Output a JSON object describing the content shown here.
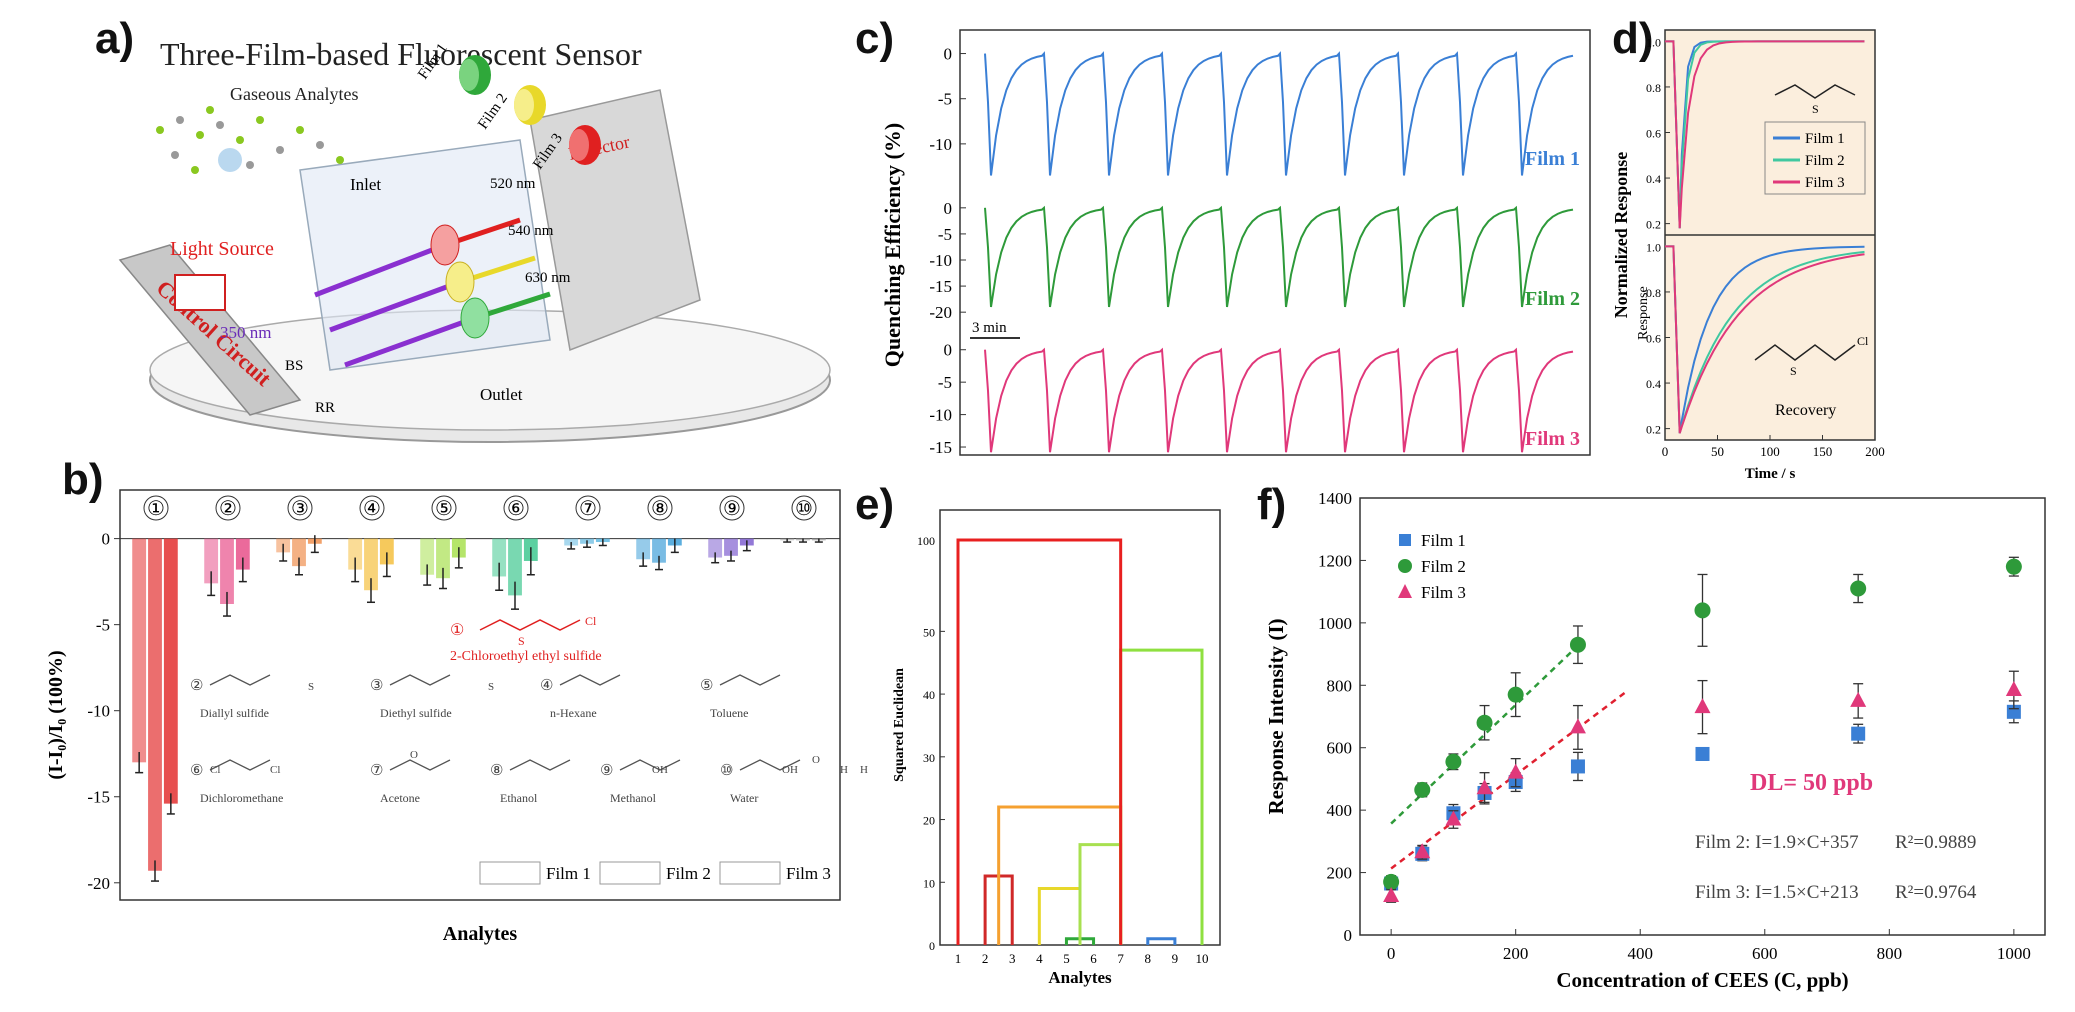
{
  "panel_labels": {
    "a": "a)",
    "b": "b)",
    "c": "c)",
    "d": "d)",
    "e": "e)",
    "f": "f)"
  },
  "colors": {
    "film1": "#3a7fd5",
    "film2": "#2e9a3a",
    "film3": "#e0387a",
    "red": "#e02020",
    "yellow": "#e8d82a",
    "green": "#2fa83a",
    "purple": "#6a3cc8"
  },
  "panel_a": {
    "title": "Three-Film-based Fluorescent Sensor",
    "gaseous": "Gaseous Analytes",
    "film1": "Film 1",
    "film2": "Film 2",
    "film3": "Film 3",
    "detector": "Detector",
    "wl1": "520 nm",
    "wl2": "540 nm",
    "wl3": "630 nm",
    "inlet": "Inlet",
    "outlet": "Outlet",
    "light": "Light Source",
    "uv": "350 nm",
    "bs": "BS",
    "rr": "RR",
    "control": "Control Circuit"
  },
  "chart_data": [
    {
      "id": "b",
      "type": "bar",
      "ylabel": "(I-I₀)/I₀ (100%)",
      "xlabel": "Analytes",
      "ylim": [
        -21,
        0.5
      ],
      "yticks": [
        0,
        -5,
        -10,
        -15,
        -20
      ],
      "categories": [
        "①",
        "②",
        "③",
        "④",
        "⑤",
        "⑥",
        "⑦",
        "⑧",
        "⑨",
        "⑩"
      ],
      "series": [
        {
          "name": "Film 1",
          "values": [
            -13.0,
            -2.6,
            -0.8,
            -1.8,
            -2.1,
            -2.2,
            -0.4,
            -1.2,
            -1.1,
            -0.1
          ]
        },
        {
          "name": "Film 2",
          "values": [
            -19.3,
            -3.8,
            -1.6,
            -3.0,
            -2.3,
            -3.3,
            -0.3,
            -1.4,
            -1.0,
            -0.1
          ]
        },
        {
          "name": "Film 3",
          "values": [
            -15.4,
            -1.8,
            -0.3,
            -1.5,
            -1.1,
            -1.3,
            -0.2,
            -0.4,
            -0.4,
            -0.1
          ]
        }
      ],
      "errors": [
        0.6,
        0.7,
        0.5,
        0.7,
        0.6,
        0.8,
        0.2,
        0.4,
        0.3,
        0.1
      ],
      "bar_colors": [
        "#e33030",
        "#e8508a",
        "#f09050",
        "#f5c040",
        "#a8e050",
        "#40c890",
        "#60b8e0",
        "#40a0d8",
        "#8060d0",
        "#a0a0a0"
      ],
      "legend": [
        "Film 1",
        "Film 2",
        "Film 3"
      ],
      "analytes": [
        {
          "n": "①",
          "name": "2-Chloroethyl ethyl sulfide"
        },
        {
          "n": "②",
          "name": "Diallyl sulfide"
        },
        {
          "n": "③",
          "name": "Diethyl sulfide"
        },
        {
          "n": "④",
          "name": "n-Hexane"
        },
        {
          "n": "⑤",
          "name": "Toluene"
        },
        {
          "n": "⑥",
          "name": "Dichloromethane"
        },
        {
          "n": "⑦",
          "name": "Acetone"
        },
        {
          "n": "⑧",
          "name": "Ethanol"
        },
        {
          "n": "⑨",
          "name": "Methanol"
        },
        {
          "n": "⑩",
          "name": "Water"
        }
      ],
      "formula_labels": {
        "s": "S",
        "cl": "Cl",
        "oh": "OH",
        "o": "O",
        "h": "H"
      }
    },
    {
      "id": "c",
      "type": "line",
      "ylabel": "Quenching Efficiency (%)",
      "scale_label": "3 min",
      "cycles": 10,
      "series": [
        {
          "name": "Film 1",
          "yticks": [
            0,
            -5,
            -10
          ],
          "ylim": [
            -14,
            1.5
          ],
          "peak": -13.5
        },
        {
          "name": "Film 2",
          "yticks": [
            0,
            -5,
            -10,
            -15,
            -20
          ],
          "ylim": [
            -21.5,
            1.5
          ],
          "peak": -19
        },
        {
          "name": "Film 3",
          "yticks": [
            0,
            -5,
            -10,
            -15
          ],
          "ylim": [
            -17,
            1.5
          ],
          "peak": -15.8
        }
      ]
    },
    {
      "id": "d",
      "type": "line",
      "ylabel": "Normalized Response",
      "xlabel": "Time / s",
      "xlim": [
        0,
        200
      ],
      "xticks": [
        0,
        50,
        100,
        150,
        200
      ],
      "yticks": [
        0.2,
        0.4,
        0.6,
        0.8,
        1.0
      ],
      "legend": [
        "Film 1",
        "Film 2",
        "Film 3"
      ],
      "annotations": {
        "response": "Response",
        "recovery": "Recovery",
        "s": "S",
        "cl": "Cl"
      }
    },
    {
      "id": "e",
      "type": "dendrogram",
      "ylabel": "Squared Euclidean",
      "xlabel": "Analytes",
      "x": [
        1,
        2,
        3,
        4,
        5,
        6,
        7,
        8,
        9,
        10
      ],
      "yticks_lower": [
        0,
        10,
        20,
        30,
        40,
        50
      ],
      "ytick_upper": 100,
      "merges": [
        {
          "a": 5,
          "b": 6,
          "h": 1,
          "color": "#2fa83a"
        },
        {
          "a": 8,
          "b": 9,
          "h": 1,
          "color": "#3a7fd5"
        },
        {
          "a": 2,
          "b": 3,
          "h": 11,
          "color": "#d02828"
        },
        {
          "a": 4,
          "b": 5.5,
          "h": 9,
          "color": "#e8d82a"
        },
        {
          "a": 5.5,
          "b": 7,
          "h": 16,
          "color": "#a8e050"
        },
        {
          "a": 2.5,
          "b": 7,
          "h": 22,
          "color": "#f5a030"
        },
        {
          "a": 7,
          "b": 10,
          "h": 47,
          "color": "#8fe040"
        },
        {
          "a": 1,
          "b": 7,
          "h": 101,
          "color": "#e82020"
        }
      ]
    },
    {
      "id": "f",
      "type": "scatter",
      "xlabel": "Concentration of CEES (C, ppb)",
      "ylabel": "Response Intensity (I)",
      "xlim": [
        -50,
        1050
      ],
      "ylim": [
        0,
        1400
      ],
      "xticks": [
        0,
        200,
        400,
        600,
        800,
        1000
      ],
      "yticks": [
        0,
        200,
        400,
        600,
        800,
        1000,
        1200,
        1400
      ],
      "x": [
        0,
        50,
        100,
        150,
        200,
        300,
        500,
        750,
        1000
      ],
      "series": [
        {
          "name": "Film 1",
          "values": [
            165,
            260,
            390,
            455,
            490,
            540,
            580,
            645,
            715
          ],
          "errors": [
            20,
            22,
            28,
            30,
            30,
            45,
            20,
            30,
            35
          ]
        },
        {
          "name": "Film 2",
          "values": [
            170,
            465,
            555,
            680,
            770,
            930,
            1040,
            1110,
            1180
          ],
          "errors": [
            20,
            22,
            25,
            55,
            70,
            60,
            115,
            45,
            30
          ]
        },
        {
          "name": "Film 3",
          "values": [
            125,
            265,
            370,
            470,
            520,
            665,
            730,
            750,
            785
          ],
          "errors": [
            20,
            22,
            28,
            50,
            45,
            70,
            85,
            55,
            60
          ]
        }
      ],
      "dl": "DL= 50 ppb",
      "eq2": "Film 2: I=1.9×C+357",
      "r2_2": "R²=0.9889",
      "eq3": "Film 3: I=1.5×C+213",
      "r2_3": "R²=0.9764"
    }
  ]
}
